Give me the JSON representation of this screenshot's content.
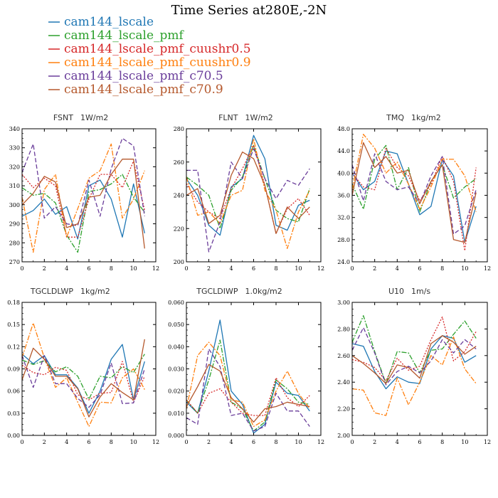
{
  "figure_title": "Time Series at280E,-2N",
  "legend": [
    {
      "label": "cam144_lscale",
      "color": "#1f77b4",
      "dash": "solid"
    },
    {
      "label": "cam144_lscale_pmf",
      "color": "#2ca02c",
      "dash": "dashdot"
    },
    {
      "label": "cam144_lscale_pmf_cuushr0.5",
      "color": "#d62728",
      "dash": "dot"
    },
    {
      "label": "cam144_lscale_pmf_cuushr0.9",
      "color": "#ff7f0e",
      "dash": "dashdot"
    },
    {
      "label": "cam144_lscale_pmf_c70.5",
      "color": "#6a3d9a",
      "dash": "dash"
    },
    {
      "label": "cam144_lscale_pmf_c70.9",
      "color": "#b5582c",
      "dash": "solid"
    }
  ],
  "chart_data": [
    {
      "type": "line",
      "title": "FSNT",
      "units": "1W/m2",
      "x": [
        0,
        1,
        2,
        3,
        4,
        5,
        6,
        7,
        8,
        9,
        10,
        11
      ],
      "xlim": [
        0,
        12
      ],
      "xticks": [
        0,
        2,
        4,
        6,
        8,
        10,
        12
      ],
      "ylim": [
        270,
        340
      ],
      "yticks": [
        "270",
        "280",
        "290",
        "300",
        "310",
        "320",
        "330",
        "340"
      ],
      "series": [
        {
          "name": "cam144_lscale",
          "values": [
            294,
            297,
            303,
            295,
            299,
            282,
            310,
            313,
            303,
            283,
            311,
            285
          ]
        },
        {
          "name": "cam144_lscale_pmf",
          "values": [
            309,
            305,
            306,
            301,
            284,
            275,
            307,
            308,
            311,
            316,
            304,
            296
          ]
        },
        {
          "name": "cam144_lscale_pmf_cuushr0.5",
          "values": [
            316,
            309,
            314,
            310,
            283,
            283,
            303,
            316,
            316,
            309,
            323,
            297
          ]
        },
        {
          "name": "cam144_lscale_pmf_cuushr0.9",
          "values": [
            304,
            275,
            308,
            316,
            283,
            298,
            314,
            318,
            332,
            293,
            303,
            318
          ]
        },
        {
          "name": "cam144_lscale_pmf_c70.5",
          "values": [
            317,
            332,
            293,
            299,
            290,
            289,
            313,
            294,
            319,
            335,
            331,
            294
          ]
        },
        {
          "name": "cam144_lscale_pmf_c70.9",
          "values": [
            300,
            306,
            315,
            312,
            288,
            290,
            304,
            305,
            316,
            324,
            324,
            277
          ]
        }
      ]
    },
    {
      "type": "line",
      "title": "FLNT",
      "units": "1W/m2",
      "x": [
        0,
        1,
        2,
        3,
        4,
        5,
        6,
        7,
        8,
        9,
        10,
        11
      ],
      "xlim": [
        0,
        12
      ],
      "xticks": [
        0,
        2,
        4,
        6,
        8,
        10,
        12
      ],
      "ylim": [
        200,
        280
      ],
      "yticks": [
        "200",
        "220",
        "240",
        "260",
        "280"
      ],
      "series": [
        {
          "name": "cam144_lscale",
          "values": [
            250,
            240,
            222,
            216,
            245,
            250,
            276,
            262,
            222,
            219,
            234,
            237
          ]
        },
        {
          "name": "cam144_lscale_pmf",
          "values": [
            251,
            246,
            240,
            220,
            243,
            251,
            270,
            250,
            231,
            226,
            224,
            244
          ]
        },
        {
          "name": "cam144_lscale_pmf_cuushr0.5",
          "values": [
            247,
            236,
            230,
            226,
            244,
            256,
            270,
            246,
            217,
            232,
            238,
            228
          ]
        },
        {
          "name": "cam144_lscale_pmf_cuushr0.9",
          "values": [
            251,
            228,
            230,
            223,
            240,
            243,
            274,
            243,
            231,
            208,
            230,
            243
          ]
        },
        {
          "name": "cam144_lscale_pmf_c70.5",
          "values": [
            255,
            255,
            206,
            224,
            260,
            250,
            268,
            250,
            238,
            249,
            246,
            256
          ]
        },
        {
          "name": "cam144_lscale_pmf_c70.9",
          "values": [
            240,
            244,
            223,
            228,
            252,
            266,
            262,
            246,
            217,
            233,
            226,
            233
          ]
        }
      ]
    },
    {
      "type": "line",
      "title": "TMQ",
      "units": "1kg/m2",
      "x": [
        0,
        1,
        2,
        3,
        4,
        5,
        6,
        7,
        8,
        9,
        10,
        11
      ],
      "xlim": [
        0,
        12
      ],
      "xticks": [
        0,
        2,
        4,
        6,
        8,
        10,
        12
      ],
      "ylim": [
        24,
        48
      ],
      "yticks": [
        "24.0",
        "28.0",
        "32.0",
        "36.0",
        "40.0",
        "44.0",
        "48.0"
      ],
      "series": [
        {
          "name": "cam144_lscale",
          "values": [
            40.0,
            37.0,
            38.5,
            44.0,
            43.5,
            38.0,
            32.5,
            34.0,
            42.5,
            39.5,
            27.5,
            34.0
          ]
        },
        {
          "name": "cam144_lscale_pmf",
          "values": [
            38.0,
            33.5,
            42.5,
            45.0,
            37.0,
            41.0,
            33.0,
            38.5,
            41.5,
            35.5,
            37.5,
            39.0
          ]
        },
        {
          "name": "cam144_lscale_pmf_cuushr0.5",
          "values": [
            40.0,
            37.5,
            37.0,
            44.5,
            41.0,
            39.5,
            35.0,
            38.0,
            43.0,
            38.5,
            26.0,
            41.0
          ]
        },
        {
          "name": "cam144_lscale_pmf_cuushr0.9",
          "values": [
            37.0,
            47.0,
            44.5,
            40.0,
            42.0,
            38.0,
            33.5,
            37.5,
            42.5,
            42.5,
            39.5,
            33.0
          ]
        },
        {
          "name": "cam144_lscale_pmf_c70.5",
          "values": [
            41.5,
            35.0,
            43.5,
            38.5,
            37.0,
            37.5,
            34.5,
            39.5,
            43.0,
            29.0,
            30.5,
            37.0
          ]
        },
        {
          "name": "cam144_lscale_pmf_c70.9",
          "values": [
            36.0,
            45.5,
            41.0,
            43.0,
            40.0,
            40.5,
            34.5,
            38.5,
            41.5,
            28.0,
            27.5,
            36.5
          ]
        }
      ]
    },
    {
      "type": "line",
      "title": "TGCLDLWP",
      "units": "1kg/m2",
      "x": [
        0,
        1,
        2,
        3,
        4,
        5,
        6,
        7,
        8,
        9,
        10,
        11
      ],
      "xlim": [
        0,
        12
      ],
      "xticks": [
        0,
        2,
        4,
        6,
        8,
        10,
        12
      ],
      "ylim": [
        0.0,
        0.18
      ],
      "yticks": [
        "0.00",
        "0.03",
        "0.06",
        "0.09",
        "0.12",
        "0.15",
        "0.18"
      ],
      "series": [
        {
          "name": "cam144_lscale",
          "values": [
            0.11,
            0.097,
            0.108,
            0.082,
            0.082,
            0.064,
            0.03,
            0.06,
            0.103,
            0.123,
            0.048,
            0.1
          ]
        },
        {
          "name": "cam144_lscale_pmf",
          "values": [
            0.102,
            0.096,
            0.101,
            0.086,
            0.093,
            0.08,
            0.049,
            0.08,
            0.078,
            0.093,
            0.085,
            0.11
          ]
        },
        {
          "name": "cam144_lscale_pmf_cuushr0.5",
          "values": [
            0.095,
            0.085,
            0.082,
            0.092,
            0.088,
            0.055,
            0.048,
            0.057,
            0.058,
            0.1,
            0.045,
            0.08
          ]
        },
        {
          "name": "cam144_lscale_pmf_cuushr0.9",
          "values": [
            0.105,
            0.152,
            0.105,
            0.065,
            0.078,
            0.045,
            0.012,
            0.045,
            0.044,
            0.078,
            0.09,
            0.062
          ]
        },
        {
          "name": "cam144_lscale_pmf_c70.5",
          "values": [
            0.108,
            0.065,
            0.108,
            0.07,
            0.07,
            0.05,
            0.038,
            0.055,
            0.098,
            0.043,
            0.044,
            0.09
          ]
        },
        {
          "name": "cam144_lscale_pmf_c70.9",
          "values": [
            0.075,
            0.118,
            0.103,
            0.08,
            0.08,
            0.063,
            0.025,
            0.052,
            0.07,
            0.058,
            0.048,
            0.13
          ]
        }
      ]
    },
    {
      "type": "line",
      "title": "TGCLDIWP",
      "units": "1.0kg/m2",
      "x": [
        0,
        1,
        2,
        3,
        4,
        5,
        6,
        7,
        8,
        9,
        10,
        11
      ],
      "xlim": [
        0,
        12
      ],
      "xticks": [
        0,
        2,
        4,
        6,
        8,
        10,
        12
      ],
      "ylim": [
        0.0,
        0.06
      ],
      "yticks": [
        "0.000",
        "0.010",
        "0.020",
        "0.030",
        "0.040",
        "0.050",
        "0.060"
      ],
      "series": [
        {
          "name": "cam144_lscale",
          "values": [
            0.015,
            0.01,
            0.029,
            0.052,
            0.02,
            0.014,
            0.001,
            0.005,
            0.024,
            0.019,
            0.018,
            0.011
          ]
        },
        {
          "name": "cam144_lscale_pmf",
          "values": [
            0.016,
            0.01,
            0.025,
            0.043,
            0.015,
            0.012,
            0.002,
            0.006,
            0.025,
            0.021,
            0.015,
            0.014
          ]
        },
        {
          "name": "cam144_lscale_pmf_cuushr0.5",
          "values": [
            0.016,
            0.01,
            0.019,
            0.021,
            0.015,
            0.01,
            0.009,
            0.009,
            0.026,
            0.017,
            0.013,
            0.018
          ]
        },
        {
          "name": "cam144_lscale_pmf_cuushr0.9",
          "values": [
            0.012,
            0.036,
            0.042,
            0.036,
            0.016,
            0.015,
            0.004,
            0.007,
            0.02,
            0.029,
            0.019,
            0.012
          ]
        },
        {
          "name": "cam144_lscale_pmf_c70.5",
          "values": [
            0.008,
            0.005,
            0.039,
            0.031,
            0.009,
            0.01,
            0.002,
            0.004,
            0.019,
            0.011,
            0.011,
            0.004
          ]
        },
        {
          "name": "cam144_lscale_pmf_c70.9",
          "values": [
            0.013,
            0.022,
            0.032,
            0.029,
            0.017,
            0.012,
            0.006,
            0.012,
            0.013,
            0.015,
            0.014,
            0.013
          ]
        }
      ]
    },
    {
      "type": "line",
      "title": "U10",
      "units": "1m/s",
      "x": [
        0,
        1,
        2,
        3,
        4,
        5,
        6,
        7,
        8,
        9,
        10,
        11
      ],
      "xlim": [
        0,
        12
      ],
      "xticks": [
        0,
        2,
        4,
        6,
        8,
        10,
        12
      ],
      "ylim": [
        2.0,
        3.0
      ],
      "yticks": [
        "2.00",
        "2.20",
        "2.40",
        "2.60",
        "2.80",
        "3.00"
      ],
      "series": [
        {
          "name": "cam144_lscale",
          "values": [
            2.69,
            2.67,
            2.48,
            2.35,
            2.44,
            2.4,
            2.39,
            2.65,
            2.75,
            2.73,
            2.55,
            2.6
          ]
        },
        {
          "name": "cam144_lscale_pmf",
          "values": [
            2.7,
            2.9,
            2.63,
            2.39,
            2.63,
            2.62,
            2.47,
            2.64,
            2.65,
            2.76,
            2.86,
            2.73
          ]
        },
        {
          "name": "cam144_lscale_pmf_cuushr0.5",
          "values": [
            2.57,
            2.55,
            2.51,
            2.41,
            2.58,
            2.49,
            2.52,
            2.72,
            2.89,
            2.56,
            2.63,
            2.78
          ]
        },
        {
          "name": "cam144_lscale_pmf_cuushr0.9",
          "values": [
            2.35,
            2.34,
            2.17,
            2.15,
            2.43,
            2.23,
            2.4,
            2.6,
            2.53,
            2.74,
            2.5,
            2.39
          ]
        },
        {
          "name": "cam144_lscale_pmf_c70.5",
          "values": [
            2.64,
            2.81,
            2.62,
            2.38,
            2.48,
            2.52,
            2.47,
            2.56,
            2.72,
            2.62,
            2.72,
            2.65
          ]
        },
        {
          "name": "cam144_lscale_pmf_c70.9",
          "values": [
            2.6,
            2.54,
            2.47,
            2.39,
            2.53,
            2.51,
            2.43,
            2.69,
            2.75,
            2.7,
            2.61,
            2.67
          ]
        }
      ]
    }
  ]
}
